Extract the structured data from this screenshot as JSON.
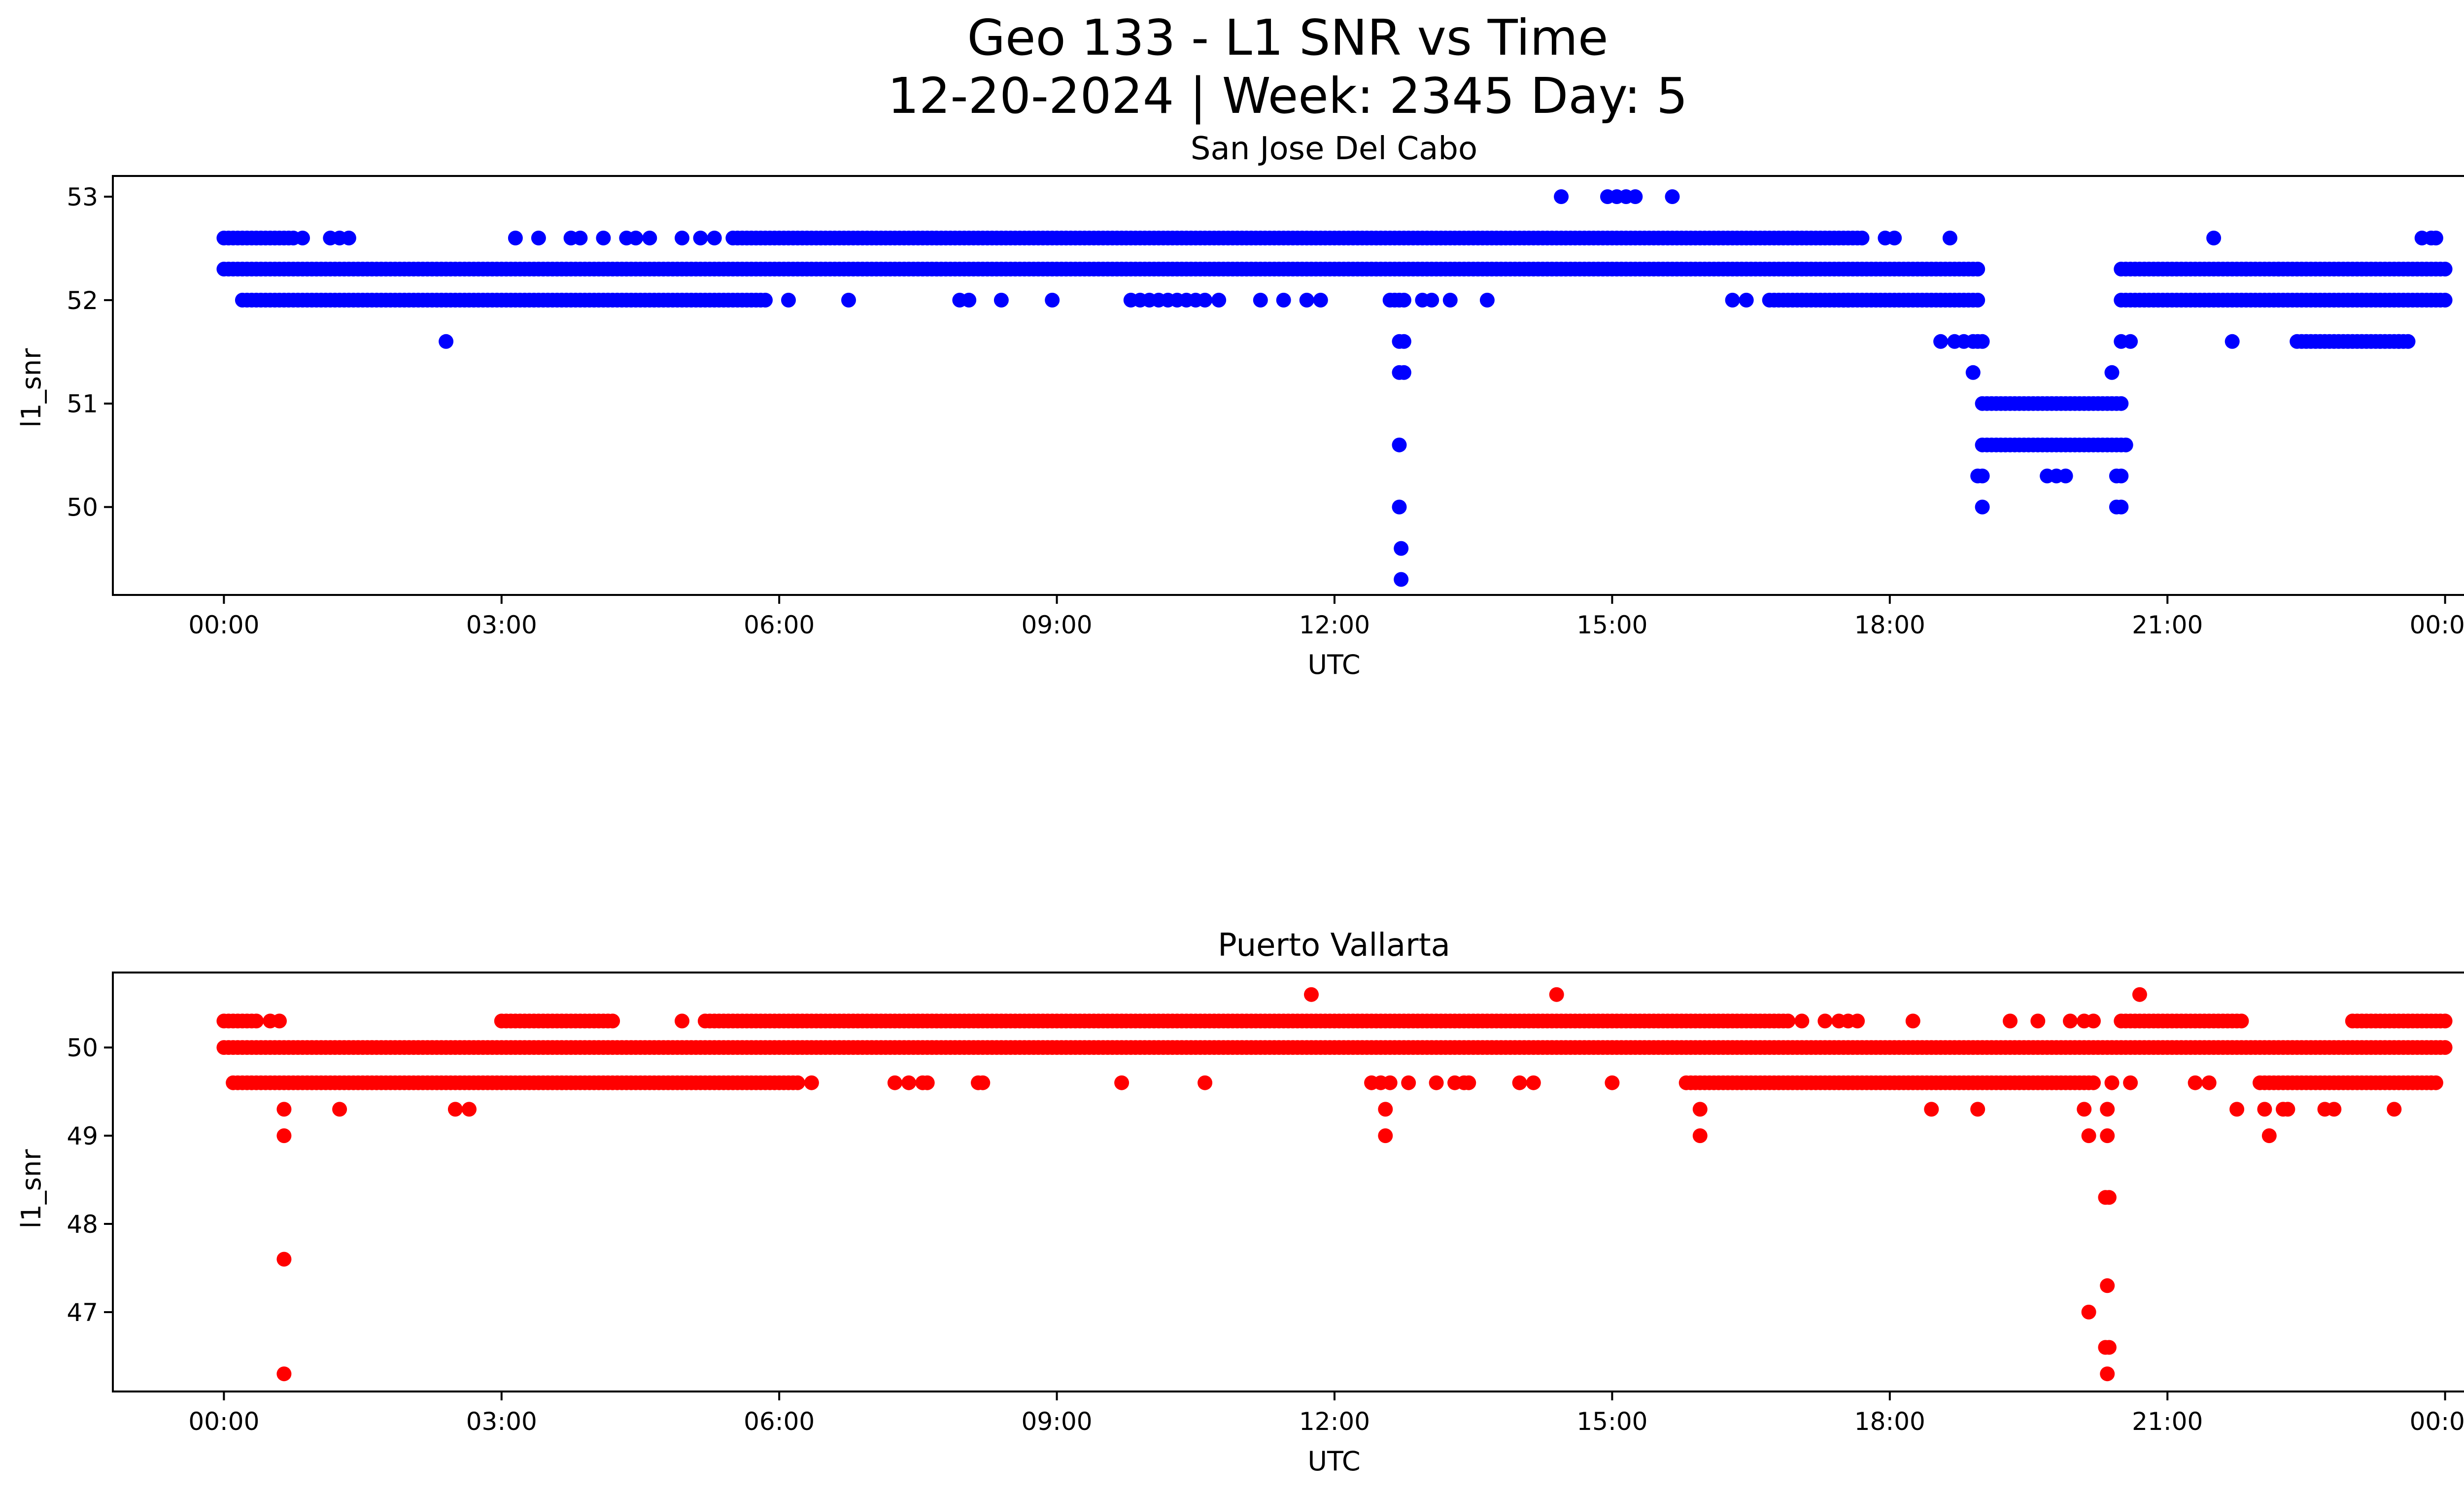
{
  "figure": {
    "title_line1": "Geo 133 - L1 SNR vs Time",
    "title_line2": "12-20-2024 | Week: 2345 Day: 5"
  },
  "chart_data": [
    {
      "type": "scatter",
      "title": "San Jose Del Cabo",
      "xlabel": "UTC",
      "ylabel": "l1_snr",
      "color": "#0000ff",
      "x_unit": "hours since 00:00 UTC",
      "xlim": [
        -1.2,
        25.2
      ],
      "ylim": [
        49.15,
        53.2
      ],
      "xticks": [
        0,
        3,
        6,
        9,
        12,
        15,
        18,
        21,
        24
      ],
      "xtick_labels": [
        "00:00",
        "03:00",
        "06:00",
        "09:00",
        "12:00",
        "15:00",
        "18:00",
        "21:00",
        "00:00"
      ],
      "yticks": [
        50,
        51,
        52,
        53
      ],
      "ytick_labels": [
        "50",
        "51",
        "52",
        "53"
      ],
      "bands": [
        {
          "y": 52.3,
          "from": 0.0,
          "to": 18.95,
          "step": 0.05
        },
        {
          "y": 52.0,
          "from": 0.2,
          "to": 5.85,
          "step": 0.05
        },
        {
          "y": 52.6,
          "from": 0.0,
          "to": 0.75,
          "step": 0.05
        },
        {
          "y": 52.6,
          "from": 5.5,
          "to": 17.7,
          "step": 0.05
        },
        {
          "y": 52.0,
          "from": 16.75,
          "to": 18.95,
          "step": 0.05
        },
        {
          "y": 51.0,
          "from": 19.0,
          "to": 20.5,
          "step": 0.05
        },
        {
          "y": 50.6,
          "from": 19.0,
          "to": 20.55,
          "step": 0.05
        },
        {
          "y": 52.3,
          "from": 20.5,
          "to": 24.0,
          "step": 0.05
        },
        {
          "y": 52.0,
          "from": 20.5,
          "to": 24.0,
          "step": 0.05
        },
        {
          "y": 51.6,
          "from": 22.4,
          "to": 23.6,
          "step": 0.05
        }
      ],
      "points": [
        [
          0.85,
          52.6
        ],
        [
          1.15,
          52.6
        ],
        [
          1.25,
          52.6
        ],
        [
          1.35,
          52.6
        ],
        [
          2.4,
          51.6
        ],
        [
          3.15,
          52.6
        ],
        [
          3.4,
          52.6
        ],
        [
          3.75,
          52.6
        ],
        [
          3.85,
          52.6
        ],
        [
          4.1,
          52.6
        ],
        [
          4.35,
          52.6
        ],
        [
          4.45,
          52.6
        ],
        [
          4.6,
          52.6
        ],
        [
          4.95,
          52.6
        ],
        [
          5.15,
          52.6
        ],
        [
          5.3,
          52.6
        ],
        [
          6.1,
          52.0
        ],
        [
          6.75,
          52.0
        ],
        [
          7.95,
          52.0
        ],
        [
          8.05,
          52.0
        ],
        [
          8.4,
          52.0
        ],
        [
          8.95,
          52.0
        ],
        [
          9.8,
          52.0
        ],
        [
          9.9,
          52.0
        ],
        [
          10.0,
          52.0
        ],
        [
          10.1,
          52.0
        ],
        [
          10.2,
          52.0
        ],
        [
          10.3,
          52.0
        ],
        [
          10.4,
          52.0
        ],
        [
          10.5,
          52.0
        ],
        [
          10.6,
          52.0
        ],
        [
          10.75,
          52.0
        ],
        [
          11.2,
          52.0
        ],
        [
          11.45,
          52.0
        ],
        [
          11.7,
          52.0
        ],
        [
          11.85,
          52.0
        ],
        [
          12.6,
          52.0
        ],
        [
          12.65,
          52.0
        ],
        [
          12.7,
          52.0
        ],
        [
          12.75,
          52.0
        ],
        [
          12.95,
          52.0
        ],
        [
          13.05,
          52.0
        ],
        [
          13.25,
          52.0
        ],
        [
          13.65,
          52.0
        ],
        [
          12.7,
          51.6
        ],
        [
          12.75,
          51.6
        ],
        [
          12.7,
          51.3
        ],
        [
          12.75,
          51.3
        ],
        [
          12.7,
          50.6
        ],
        [
          12.7,
          50.0
        ],
        [
          12.72,
          49.6
        ],
        [
          12.72,
          49.3
        ],
        [
          14.45,
          53.0
        ],
        [
          14.95,
          53.0
        ],
        [
          15.05,
          53.0
        ],
        [
          15.15,
          53.0
        ],
        [
          15.25,
          53.0
        ],
        [
          15.65,
          53.0
        ],
        [
          16.3,
          52.0
        ],
        [
          16.45,
          52.0
        ],
        [
          16.7,
          52.0
        ],
        [
          17.5,
          52.0
        ],
        [
          17.55,
          52.0
        ],
        [
          17.95,
          52.6
        ],
        [
          18.05,
          52.6
        ],
        [
          18.65,
          52.6
        ],
        [
          18.55,
          51.6
        ],
        [
          18.7,
          51.6
        ],
        [
          18.8,
          51.6
        ],
        [
          18.9,
          51.6
        ],
        [
          18.95,
          51.6
        ],
        [
          19.0,
          51.6
        ],
        [
          18.9,
          51.3
        ],
        [
          18.95,
          50.3
        ],
        [
          19.0,
          50.3
        ],
        [
          19.0,
          50.0
        ],
        [
          19.7,
          50.3
        ],
        [
          19.8,
          50.3
        ],
        [
          19.9,
          50.3
        ],
        [
          20.4,
          51.3
        ],
        [
          20.5,
          51.6
        ],
        [
          20.6,
          51.6
        ],
        [
          20.45,
          50.3
        ],
        [
          20.5,
          50.3
        ],
        [
          20.45,
          50.0
        ],
        [
          20.5,
          50.0
        ],
        [
          21.5,
          52.6
        ],
        [
          21.7,
          51.6
        ],
        [
          21.85,
          52.3
        ],
        [
          22.2,
          52.3
        ],
        [
          23.5,
          51.6
        ],
        [
          23.75,
          52.6
        ],
        [
          23.85,
          52.6
        ],
        [
          23.9,
          52.6
        ]
      ]
    },
    {
      "type": "scatter",
      "title": "Puerto Vallarta",
      "xlabel": "UTC",
      "ylabel": "l1_snr",
      "color": "#ff0000",
      "x_unit": "hours since 00:00 UTC",
      "xlim": [
        -1.2,
        25.2
      ],
      "ylim": [
        46.1,
        50.85
      ],
      "xticks": [
        0,
        3,
        6,
        9,
        12,
        15,
        18,
        21,
        24
      ],
      "xtick_labels": [
        "00:00",
        "03:00",
        "06:00",
        "09:00",
        "12:00",
        "15:00",
        "18:00",
        "21:00",
        "00:00"
      ],
      "yticks": [
        47,
        48,
        49,
        50
      ],
      "ytick_labels": [
        "47",
        "48",
        "49",
        "50"
      ],
      "bands": [
        {
          "y": 50.0,
          "from": 0.0,
          "to": 24.0,
          "step": 0.05
        },
        {
          "y": 49.6,
          "from": 0.1,
          "to": 6.2,
          "step": 0.05
        },
        {
          "y": 50.3,
          "from": 0.0,
          "to": 0.35,
          "step": 0.05
        },
        {
          "y": 50.3,
          "from": 3.0,
          "to": 4.2,
          "step": 0.05
        },
        {
          "y": 50.3,
          "from": 5.2,
          "to": 16.9,
          "step": 0.05
        },
        {
          "y": 49.6,
          "from": 15.8,
          "to": 20.2,
          "step": 0.05
        },
        {
          "y": 50.3,
          "from": 20.5,
          "to": 21.8,
          "step": 0.05
        },
        {
          "y": 49.6,
          "from": 22.0,
          "to": 23.9,
          "step": 0.05
        },
        {
          "y": 50.3,
          "from": 23.0,
          "to": 24.0,
          "step": 0.05
        }
      ],
      "points": [
        [
          0.5,
          50.3
        ],
        [
          0.6,
          50.3
        ],
        [
          0.65,
          49.3
        ],
        [
          0.65,
          49.0
        ],
        [
          0.65,
          47.6
        ],
        [
          0.65,
          46.3
        ],
        [
          1.25,
          49.3
        ],
        [
          2.5,
          49.3
        ],
        [
          2.65,
          49.3
        ],
        [
          4.95,
          50.3
        ],
        [
          6.35,
          49.6
        ],
        [
          7.25,
          49.6
        ],
        [
          7.4,
          49.6
        ],
        [
          7.55,
          49.6
        ],
        [
          7.6,
          49.6
        ],
        [
          8.15,
          49.6
        ],
        [
          8.2,
          49.6
        ],
        [
          9.7,
          49.6
        ],
        [
          10.6,
          49.6
        ],
        [
          11.75,
          50.6
        ],
        [
          12.4,
          49.6
        ],
        [
          12.5,
          49.6
        ],
        [
          12.6,
          49.6
        ],
        [
          12.55,
          49.3
        ],
        [
          12.55,
          49.0
        ],
        [
          12.8,
          49.6
        ],
        [
          13.1,
          49.6
        ],
        [
          13.3,
          49.6
        ],
        [
          13.4,
          49.6
        ],
        [
          13.45,
          49.6
        ],
        [
          14.0,
          49.6
        ],
        [
          14.15,
          49.6
        ],
        [
          14.4,
          50.6
        ],
        [
          15.0,
          49.6
        ],
        [
          15.95,
          49.3
        ],
        [
          15.95,
          49.0
        ],
        [
          17.05,
          50.3
        ],
        [
          17.3,
          50.3
        ],
        [
          17.45,
          50.3
        ],
        [
          17.55,
          50.3
        ],
        [
          17.65,
          50.3
        ],
        [
          18.25,
          50.3
        ],
        [
          18.45,
          49.3
        ],
        [
          18.95,
          49.3
        ],
        [
          19.3,
          50.3
        ],
        [
          19.6,
          50.3
        ],
        [
          19.95,
          50.3
        ],
        [
          20.1,
          50.3
        ],
        [
          20.2,
          50.3
        ],
        [
          20.4,
          49.6
        ],
        [
          20.6,
          49.6
        ],
        [
          20.1,
          49.3
        ],
        [
          20.35,
          49.3
        ],
        [
          20.15,
          49.0
        ],
        [
          20.35,
          49.0
        ],
        [
          20.33,
          48.3
        ],
        [
          20.37,
          48.3
        ],
        [
          20.15,
          47.0
        ],
        [
          20.35,
          47.3
        ],
        [
          20.33,
          46.6
        ],
        [
          20.37,
          46.6
        ],
        [
          20.35,
          46.3
        ],
        [
          20.7,
          50.6
        ],
        [
          21.3,
          49.6
        ],
        [
          21.45,
          49.6
        ],
        [
          21.75,
          49.3
        ],
        [
          22.05,
          49.3
        ],
        [
          22.1,
          49.0
        ],
        [
          22.25,
          49.3
        ],
        [
          22.3,
          49.3
        ],
        [
          22.7,
          49.3
        ],
        [
          22.8,
          49.3
        ],
        [
          23.45,
          49.3
        ],
        [
          23.85,
          49.6
        ]
      ]
    }
  ]
}
